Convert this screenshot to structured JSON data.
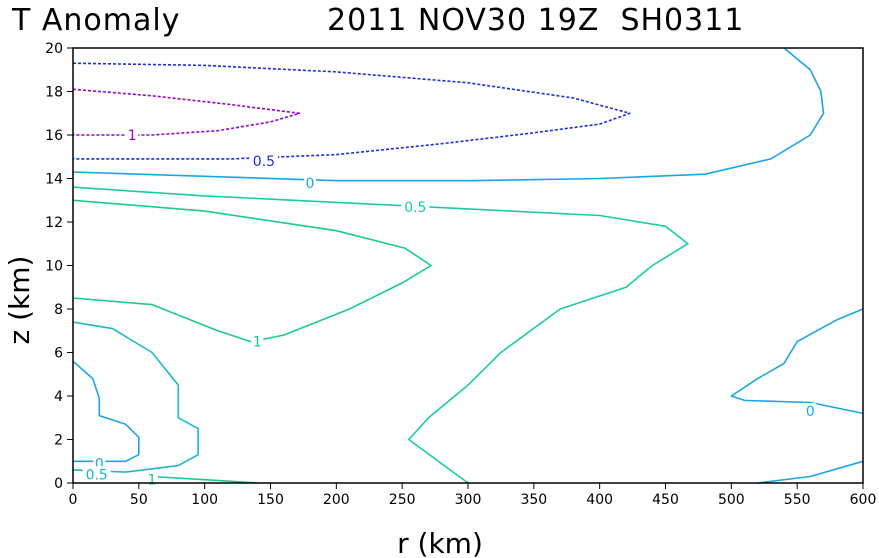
{
  "chart_data": {
    "type": "contour",
    "title_left": "T Anomaly",
    "title_right": "2011 NOV30 19Z  SH0311",
    "xlabel": "r (km)",
    "ylabel": "z (km)",
    "xlim": [
      0,
      600
    ],
    "ylim": [
      0,
      20
    ],
    "xticks": [
      0,
      50,
      100,
      150,
      200,
      250,
      300,
      350,
      400,
      450,
      500,
      550,
      600
    ],
    "yticks": [
      0,
      2,
      4,
      6,
      8,
      10,
      12,
      14,
      16,
      18,
      20
    ],
    "grid": false,
    "colors": {
      "level_1_upper": "#9900cc",
      "level_0_5_upper": "#1a2ee6",
      "level_0": "#1aa6e6",
      "level_0_5_mid": "#1acca6",
      "level_1_mid": "#1acc8c",
      "level_0_5_inner": "#1ab8cc"
    },
    "contours": [
      {
        "level": "1",
        "color": "#9900cc",
        "dashed": true,
        "points": [
          [
            0,
            18.1
          ],
          [
            60,
            17.8
          ],
          [
            120,
            17.4
          ],
          [
            172,
            17.0
          ],
          [
            150,
            16.6
          ],
          [
            110,
            16.2
          ],
          [
            60,
            16.0
          ],
          [
            0,
            16.0
          ]
        ]
      },
      {
        "level": "0.5",
        "color": "#1a2ee6",
        "dashed": true,
        "points": [
          [
            0,
            19.3
          ],
          [
            100,
            19.2
          ],
          [
            200,
            18.9
          ],
          [
            300,
            18.4
          ],
          [
            380,
            17.7
          ],
          [
            423,
            17.0
          ],
          [
            400,
            16.5
          ],
          [
            350,
            16.1
          ],
          [
            280,
            15.6
          ],
          [
            200,
            15.1
          ],
          [
            120,
            14.9
          ],
          [
            0,
            14.9
          ]
        ]
      },
      {
        "level": "0",
        "color": "#1aa6e6",
        "dashed": false,
        "points": [
          [
            0,
            14.3
          ],
          [
            100,
            14.1
          ],
          [
            200,
            13.9
          ],
          [
            300,
            13.9
          ],
          [
            400,
            14.0
          ],
          [
            480,
            14.2
          ],
          [
            530,
            14.9
          ],
          [
            560,
            16.0
          ],
          [
            570,
            17.0
          ],
          [
            568,
            18.0
          ],
          [
            560,
            19.0
          ],
          [
            540,
            20.0
          ]
        ]
      },
      {
        "level": "0.5",
        "color": "#1acca6",
        "dashed": false,
        "points": [
          [
            0,
            13.6
          ],
          [
            100,
            13.2
          ],
          [
            200,
            12.9
          ],
          [
            300,
            12.6
          ],
          [
            400,
            12.3
          ],
          [
            450,
            11.8
          ],
          [
            467,
            11.0
          ],
          [
            440,
            10.0
          ],
          [
            420,
            9.0
          ],
          [
            370,
            8.0
          ],
          [
            325,
            6.0
          ],
          [
            300,
            4.5
          ],
          [
            270,
            3.0
          ],
          [
            255,
            2.0
          ],
          [
            300,
            0.0
          ]
        ]
      },
      {
        "level": "1",
        "color": "#1acc8c",
        "dashed": false,
        "points": [
          [
            0,
            13.0
          ],
          [
            100,
            12.5
          ],
          [
            200,
            11.6
          ],
          [
            252,
            10.8
          ],
          [
            262,
            10.4
          ],
          [
            272,
            10.0
          ],
          [
            250,
            9.2
          ],
          [
            210,
            8.0
          ],
          [
            160,
            6.8
          ],
          [
            135,
            6.5
          ],
          [
            110,
            7.0
          ],
          [
            60,
            8.2
          ],
          [
            0,
            8.5
          ]
        ]
      },
      {
        "level": "0.5",
        "color": "#1ab8cc",
        "dashed": false,
        "points": [
          [
            0,
            7.4
          ],
          [
            30,
            7.1
          ],
          [
            60,
            6.0
          ],
          [
            80,
            4.5
          ],
          [
            80,
            3.0
          ],
          [
            95,
            2.5
          ],
          [
            95,
            1.3
          ],
          [
            80,
            0.8
          ],
          [
            40,
            0.5
          ],
          [
            0,
            0.6
          ]
        ]
      },
      {
        "level": "0",
        "color": "#1aa6e6",
        "dashed": false,
        "points": [
          [
            0,
            5.6
          ],
          [
            15,
            4.8
          ],
          [
            20,
            3.9
          ],
          [
            20,
            3.1
          ],
          [
            40,
            2.7
          ],
          [
            50,
            2.1
          ],
          [
            50,
            1.3
          ],
          [
            40,
            1.0
          ],
          [
            0,
            1.0
          ]
        ]
      },
      {
        "level": "0",
        "color": "#1aa6e6",
        "dashed": false,
        "points": [
          [
            520,
            0.0
          ],
          [
            560,
            0.3
          ],
          [
            600,
            1.0
          ]
        ]
      },
      {
        "level": "0",
        "color": "#1aa6e6",
        "dashed": false,
        "points": [
          [
            600,
            8.0
          ],
          [
            580,
            7.5
          ],
          [
            550,
            6.5
          ],
          [
            540,
            5.5
          ],
          [
            520,
            4.8
          ],
          [
            500,
            4.0
          ],
          [
            510,
            3.8
          ],
          [
            560,
            3.7
          ],
          [
            600,
            3.2
          ]
        ]
      },
      {
        "level": "1",
        "color": "#1acc8c",
        "dashed": false,
        "points": [
          [
            60,
            0.3
          ],
          [
            100,
            0.15
          ],
          [
            140,
            0.0
          ]
        ]
      }
    ],
    "contour_labels": [
      {
        "text": "1",
        "x": 45,
        "y": 16.0,
        "color": "#9900cc"
      },
      {
        "text": "0.5",
        "x": 145,
        "y": 14.8,
        "color": "#1a2ee6"
      },
      {
        "text": "0",
        "x": 180,
        "y": 13.8,
        "color": "#1aa6e6"
      },
      {
        "text": "0.5",
        "x": 260,
        "y": 12.7,
        "color": "#1acca6"
      },
      {
        "text": "1",
        "x": 140,
        "y": 6.5,
        "color": "#1acc8c"
      },
      {
        "text": "0",
        "x": 560,
        "y": 3.3,
        "color": "#1aa6e6"
      },
      {
        "text": "0",
        "x": 20,
        "y": 0.9,
        "color": "#1aa6e6"
      },
      {
        "text": "0.5",
        "x": 18,
        "y": 0.4,
        "color": "#1ab8cc"
      },
      {
        "text": "1",
        "x": 60,
        "y": 0.15,
        "color": "#1acc8c"
      }
    ]
  }
}
